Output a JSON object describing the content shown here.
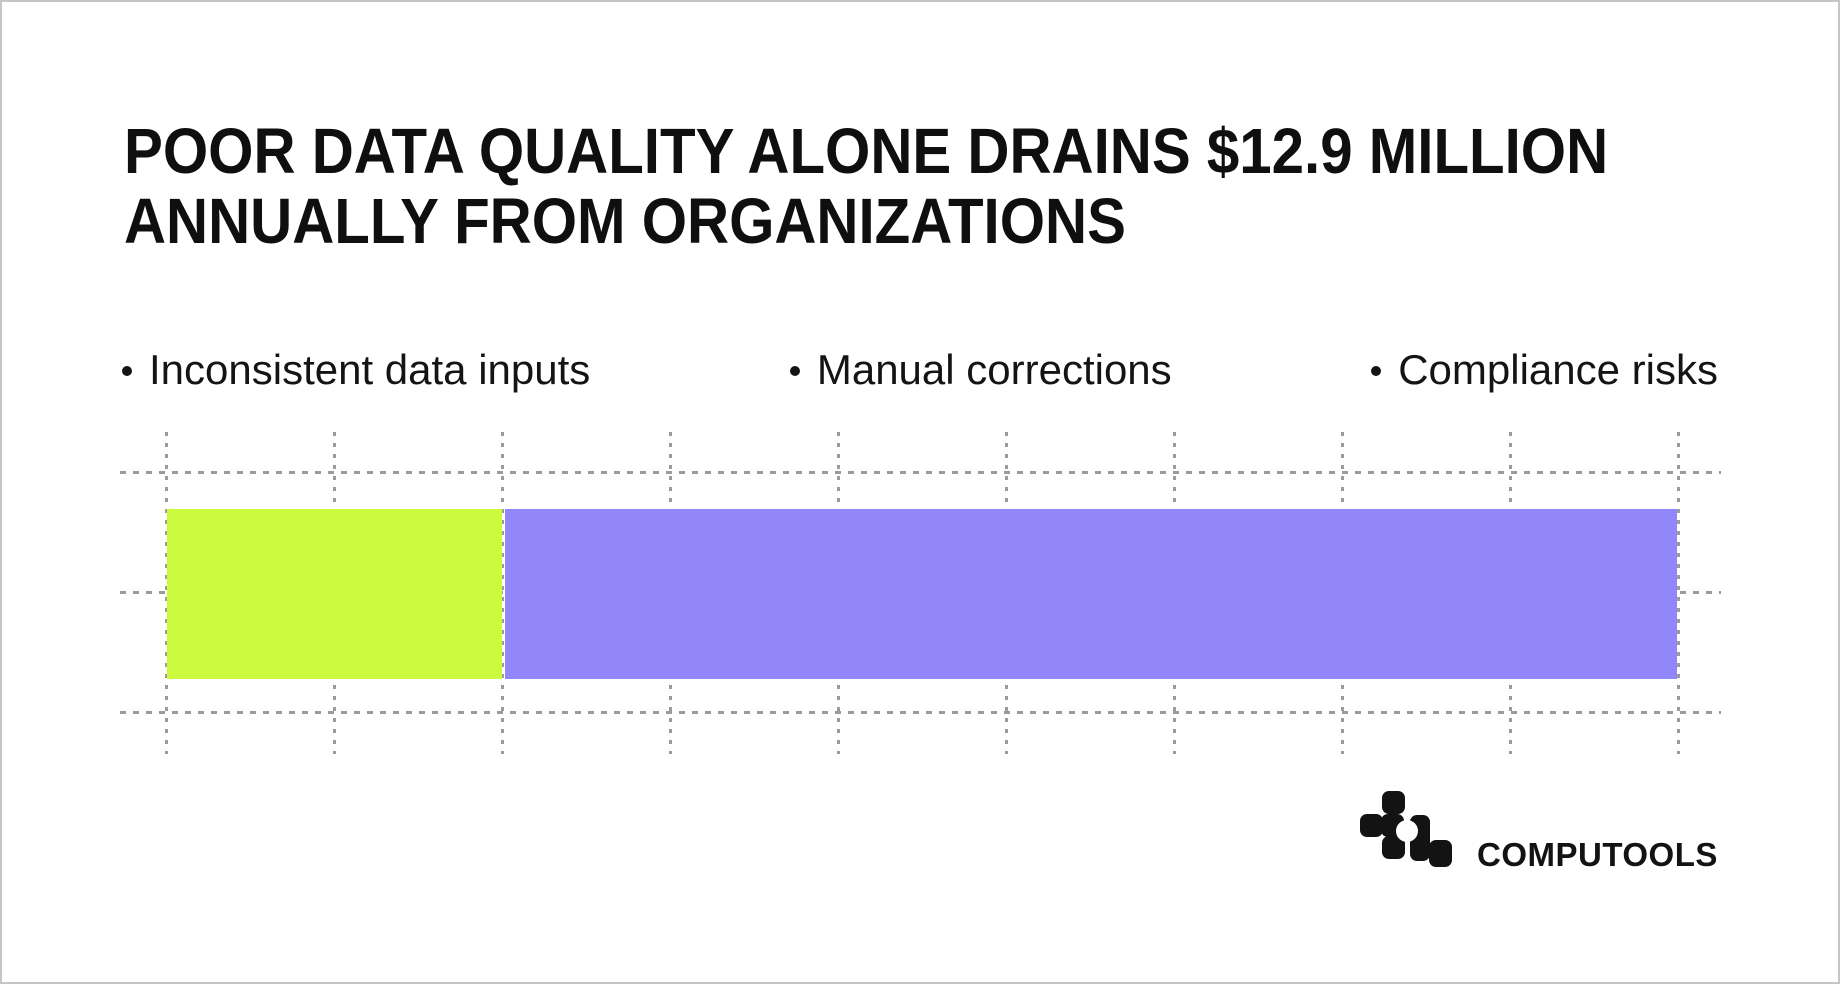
{
  "page": {
    "background": "#ffffff",
    "border_color": "#c5c5c5"
  },
  "headline": {
    "full_text": "POOR DATA QUALITY ALONE DRAINS $12.9 MILLION ANNUALLY FROM ORGANIZATIONS",
    "lines": [
      "POOR DATA QUALITY ALONE DRAINS $12.9 MILLION",
      "ANNUALLY FROM ORGANIZATIONS"
    ],
    "highlight_figure": "$12.9 MILLION",
    "color": "#0f0f0f"
  },
  "bullets": [
    {
      "label": "Inconsistent data inputs"
    },
    {
      "label": "Manual corrections"
    },
    {
      "label": "Compliance risks"
    }
  ],
  "chart_data": {
    "type": "bar",
    "orientation": "horizontal",
    "stacked": true,
    "title": "",
    "xlabel": "",
    "ylabel": "",
    "data_labels": false,
    "legend": "none",
    "series": [
      {
        "name": "lime-segment",
        "value": 2,
        "estimated_percent": 22.2,
        "color": "#ccfa3e"
      },
      {
        "name": "purple-segment",
        "value": 7,
        "estimated_percent": 77.8,
        "color": "#9186fa"
      }
    ],
    "value_units": "grid cells (bar spans 9 dashed grid cells total)",
    "grid": {
      "visible": true,
      "style": "dashed",
      "line_color": "#9b9b9b",
      "vertical_lines": 10,
      "horizontal_lines": 3
    }
  },
  "logo": {
    "wordmark": "COMPUTOOLS",
    "mark": "computools-pixel-monogram",
    "color": "#131313"
  }
}
